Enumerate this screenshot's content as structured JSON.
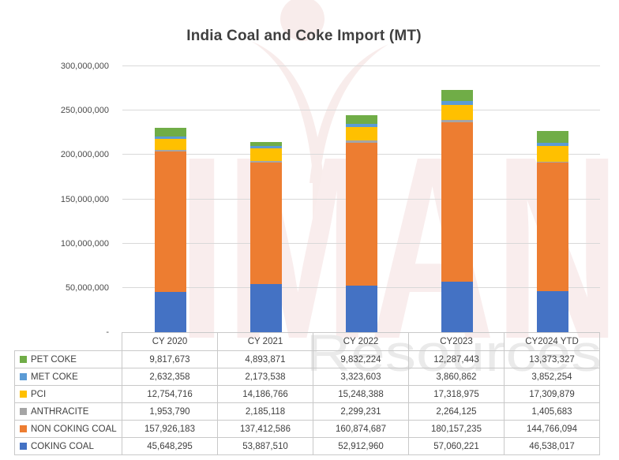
{
  "title": "India Coal and Coke Import (MT)",
  "watermark": {
    "logo": "torch-icon",
    "brand_text": "IMAN",
    "brand_subtext": "Resources",
    "logo_color": "#f8eceb",
    "brand_text_color": "#f9eded",
    "brand_subtext_color": "#eaeaea"
  },
  "chart_data": {
    "type": "bar",
    "stacked": true,
    "title": "India Coal and Coke Import (MT)",
    "unit": "MT",
    "grid": true,
    "legend_position": "table-left",
    "ylim": [
      0,
      300000000
    ],
    "y_ticks": [
      {
        "value": 300000000,
        "label": "300,000,000"
      },
      {
        "value": 250000000,
        "label": "250,000,000"
      },
      {
        "value": 200000000,
        "label": "200,000,000"
      },
      {
        "value": 150000000,
        "label": "150,000,000"
      },
      {
        "value": 100000000,
        "label": "100,000,000"
      },
      {
        "value": 50000000,
        "label": "50,000,000"
      },
      {
        "value": 0,
        "label": "-"
      }
    ],
    "categories": [
      "CY 2020",
      "CY 2021",
      "CY 2022",
      "CY2023",
      "CY2024 YTD"
    ],
    "series": [
      {
        "name": "PET COKE",
        "color": "#70AD47",
        "values": [
          9817673,
          4893871,
          9832224,
          12287443,
          13373327
        ],
        "values_formatted": [
          "9,817,673",
          "4,893,871",
          "9,832,224",
          "12,287,443",
          "13,373,327"
        ]
      },
      {
        "name": "MET COKE",
        "color": "#5B9BD5",
        "values": [
          2632358,
          2173538,
          3323603,
          3860862,
          3852254
        ],
        "values_formatted": [
          "2,632,358",
          "2,173,538",
          "3,323,603",
          "3,860,862",
          "3,852,254"
        ]
      },
      {
        "name": "PCI",
        "color": "#FFC000",
        "values": [
          12754716,
          14186766,
          15248388,
          17318975,
          17309879
        ],
        "values_formatted": [
          "12,754,716",
          "14,186,766",
          "15,248,388",
          "17,318,975",
          "17,309,879"
        ]
      },
      {
        "name": "ANTHRACITE",
        "color": "#A5A5A5",
        "values": [
          1953790,
          2185118,
          2299231,
          2264125,
          1405683
        ],
        "values_formatted": [
          "1,953,790",
          "2,185,118",
          "2,299,231",
          "2,264,125",
          "1,405,683"
        ]
      },
      {
        "name": "NON COKING COAL",
        "color": "#ED7D31",
        "values": [
          157926183,
          137412586,
          160874687,
          180157235,
          144766094
        ],
        "values_formatted": [
          "157,926,183",
          "137,412,586",
          "160,874,687",
          "180,157,235",
          "144,766,094"
        ]
      },
      {
        "name": "COKING COAL",
        "color": "#4472C4",
        "values": [
          45648295,
          53887510,
          52912960,
          57060221,
          46538017
        ],
        "values_formatted": [
          "45,648,295",
          "53,887,510",
          "52,912,960",
          "57,060,221",
          "46,538,017"
        ]
      }
    ],
    "stack_order_bottom_to_top": [
      "COKING COAL",
      "NON COKING COAL",
      "ANTHRACITE",
      "PCI",
      "MET COKE",
      "PET COKE"
    ]
  }
}
